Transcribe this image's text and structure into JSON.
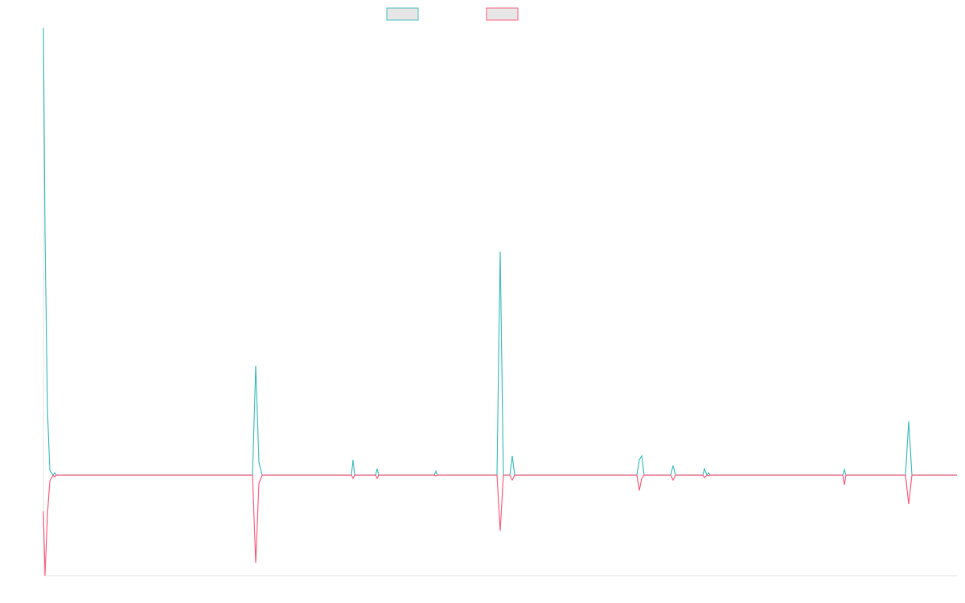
{
  "chart_data": {
    "type": "line",
    "x": [
      0,
      2,
      5,
      8,
      12,
      14,
      16,
      260,
      264,
      268,
      272,
      383,
      385,
      387,
      413,
      415,
      417,
      486,
      488,
      490,
      564,
      568,
      572,
      580,
      583,
      586,
      738,
      741,
      744,
      747,
      780,
      783,
      786,
      820,
      822,
      825,
      827,
      829,
      994,
      996,
      998,
      1072,
      1076,
      1080,
      1136
    ],
    "series": [
      {
        "color": "#4bc0c0",
        "values": [
          556,
          300,
          81,
          6,
          0,
          3,
          0,
          0,
          136,
          16,
          0,
          0,
          19,
          0,
          0,
          8,
          0,
          0,
          5,
          0,
          0,
          278,
          0,
          0,
          24,
          0,
          0,
          19,
          24,
          0,
          0,
          12,
          0,
          0,
          8,
          0,
          3,
          0,
          0,
          7,
          0,
          0,
          67,
          0,
          0
        ]
      },
      {
        "color": "#ff6384",
        "values": [
          -45,
          -125,
          -49,
          -7,
          0,
          -2,
          0,
          0,
          -109,
          -10,
          0,
          0,
          -4,
          0,
          0,
          -4,
          0,
          0,
          -1,
          0,
          0,
          -69,
          0,
          0,
          -6,
          0,
          0,
          -19,
          -4,
          0,
          0,
          -6,
          0,
          0,
          -3,
          0,
          -1,
          0,
          0,
          -12,
          0,
          0,
          -36,
          0,
          0
        ]
      }
    ],
    "xlim": [
      0,
      1136
    ],
    "ylim": [
      -125,
      556
    ]
  }
}
